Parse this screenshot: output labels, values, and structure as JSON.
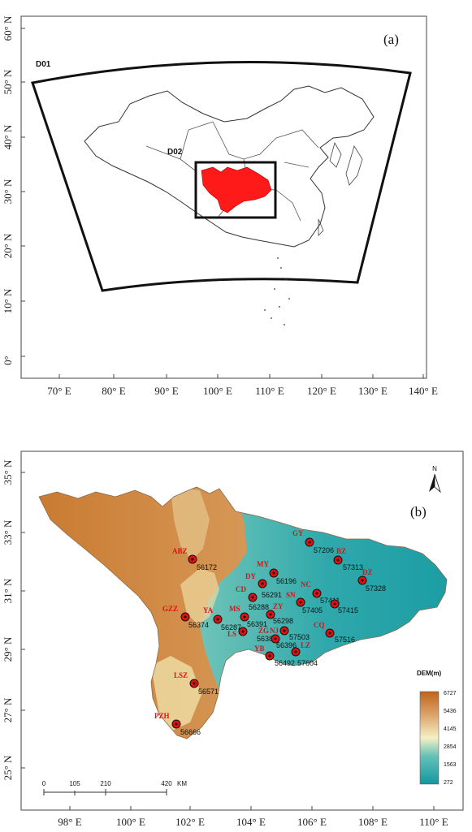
{
  "panel_a": {
    "label": "(a)",
    "y_ticks": [
      "60° N",
      "50° N",
      "40° N",
      "30° N",
      "20° N",
      "10° N",
      "0°"
    ],
    "x_ticks": [
      "70° E",
      "80° E",
      "90° E",
      "100° E",
      "110° E",
      "120° E",
      "130° E",
      "140° E"
    ],
    "domain_outer": "D01",
    "domain_inner": "D02",
    "colors": {
      "province_fill": "#ff1a1a",
      "frame": "#111111"
    }
  },
  "panel_b": {
    "label": "(b)",
    "y_ticks": [
      "35° N",
      "33° N",
      "31° N",
      "29° N",
      "27° N",
      "25° N"
    ],
    "x_ticks": [
      "98° E",
      "100° E",
      "102° E",
      "104° E",
      "106° E",
      "108° E",
      "110° E"
    ],
    "north_label": "N",
    "legend": {
      "title": "DEM(m)",
      "values": [
        "6727",
        "5436",
        "4145",
        "2854",
        "1563",
        "272"
      ],
      "colors": [
        "#c0631c",
        "#dba36a",
        "#f5efc4",
        "#63c1b8",
        "#15979f"
      ]
    },
    "scale": {
      "ticks": [
        "0",
        "105",
        "210",
        "420"
      ],
      "unit": "KM"
    },
    "stations": [
      {
        "abbr": "ABZ",
        "code": "56172"
      },
      {
        "abbr": "GY",
        "code": "57206"
      },
      {
        "abbr": "BZ",
        "code": "57313"
      },
      {
        "abbr": "MY",
        "code": "56196"
      },
      {
        "abbr": "DZ",
        "code": "57328"
      },
      {
        "abbr": "DY",
        "code": "56291"
      },
      {
        "abbr": "NC",
        "code": "57411"
      },
      {
        "abbr": "CD",
        "code": "56288"
      },
      {
        "abbr": "SN",
        "code": "57405"
      },
      {
        "abbr": "",
        "code": "57415"
      },
      {
        "abbr": "GZZ",
        "code": "56374"
      },
      {
        "abbr": "YA",
        "code": "56287"
      },
      {
        "abbr": "MS",
        "code": "56391"
      },
      {
        "abbr": "ZY",
        "code": "56298"
      },
      {
        "abbr": "LS",
        "code": "56386"
      },
      {
        "abbr": "ZG",
        "code": "56396"
      },
      {
        "abbr": "NJ",
        "code": "57503"
      },
      {
        "abbr": "CQ",
        "code": "57516"
      },
      {
        "abbr": "YB",
        "code": "56492"
      },
      {
        "abbr": "LZ",
        "code": "57604"
      },
      {
        "abbr": "LSZ",
        "code": "56571"
      },
      {
        "abbr": "PZH",
        "code": "56666"
      }
    ]
  }
}
